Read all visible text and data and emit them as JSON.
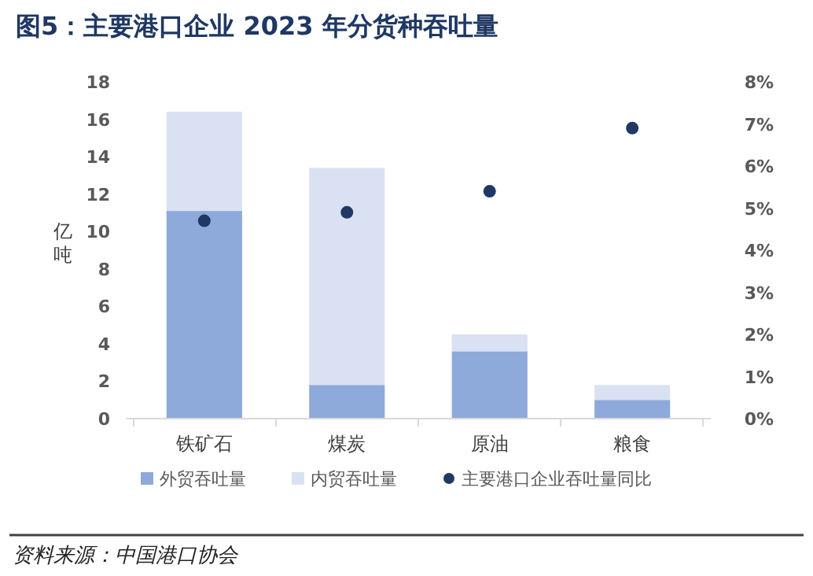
{
  "chart_data": {
    "type": "bar",
    "title": "图5：主要港口企业 2023 年分货种吞吐量",
    "ylabel": "亿吨",
    "stacked": true,
    "categories": [
      "铁矿石",
      "煤炭",
      "原油",
      "粮食"
    ],
    "series": [
      {
        "name": "外贸吞吐量",
        "color": "#8eaadb",
        "values": [
          11.1,
          1.8,
          3.6,
          1.0
        ]
      },
      {
        "name": "内贸吞吐量",
        "color": "#dae1f3",
        "values": [
          5.3,
          11.6,
          0.9,
          0.8
        ]
      },
      {
        "name": "主要港口企业吞吐量同比",
        "type": "scatter",
        "axis": "y2",
        "color": "#1f3864",
        "marker": "circle",
        "values": [
          4.7,
          4.9,
          5.4,
          6.9
        ]
      }
    ],
    "ylim": [
      0,
      18
    ],
    "yticks": [
      0,
      2,
      4,
      6,
      8,
      10,
      12,
      14,
      16,
      18
    ],
    "y2lim": [
      0,
      8
    ],
    "y2ticks": [
      {
        "value": 0,
        "label": "0%"
      },
      {
        "value": 1,
        "label": "1%"
      },
      {
        "value": 2,
        "label": "2%"
      },
      {
        "value": 3,
        "label": "3%"
      },
      {
        "value": 4,
        "label": "4%"
      },
      {
        "value": 5,
        "label": "5%"
      },
      {
        "value": 6,
        "label": "6%"
      },
      {
        "value": 7,
        "label": "7%"
      },
      {
        "value": 8,
        "label": "8%"
      }
    ],
    "legend": "bottom",
    "grid": false,
    "annotations": [
      "资料来源：中国港口协会"
    ]
  }
}
